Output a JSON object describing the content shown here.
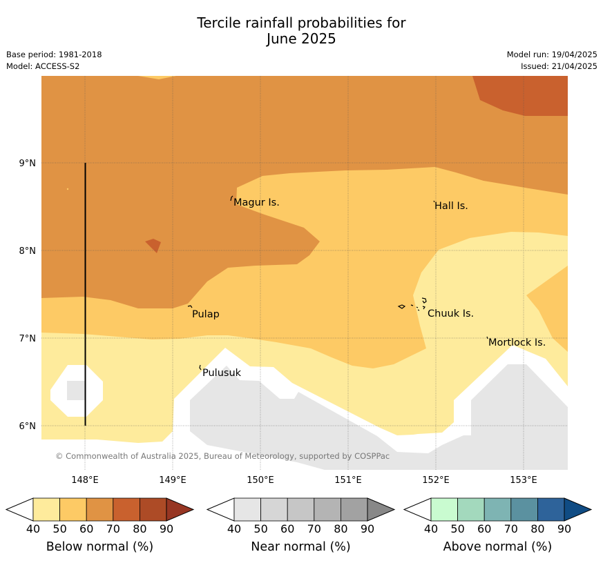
{
  "title_line1": "Tercile rainfall probabilities for",
  "title_line2": "June 2025",
  "base_period": "Base period: 1981-2018",
  "model": "Model: ACCESS-S2",
  "model_run": "Model run: 19/04/2025",
  "issued": "Issued: 21/04/2025",
  "copyright": "© Commonwealth of Australia 2025, Bureau of Meteorology, supported by COSPPac",
  "lat_ticks": [
    "9°N",
    "8°N",
    "7°N",
    "6°N"
  ],
  "lon_ticks": [
    "148°E",
    "149°E",
    "150°E",
    "151°E",
    "152°E",
    "153°E"
  ],
  "places": [
    {
      "name": "Magur Is."
    },
    {
      "name": "Hall Is."
    },
    {
      "name": "Pulap"
    },
    {
      "name": "Chuuk Is."
    },
    {
      "name": "Mortlock Is."
    },
    {
      "name": "Pulusuk"
    }
  ],
  "colorbars": [
    {
      "label": "Below normal (%)",
      "ticks": [
        "40",
        "50",
        "60",
        "70",
        "80",
        "90"
      ],
      "colors": [
        "#ffffff",
        "#feeb9c",
        "#fdca65",
        "#e09344",
        "#c9612e",
        "#ad4b26",
        "#973623"
      ]
    },
    {
      "label": "Near normal (%)",
      "ticks": [
        "40",
        "50",
        "60",
        "70",
        "80",
        "90"
      ],
      "colors": [
        "#ffffff",
        "#e6e6e6",
        "#d6d6d6",
        "#c6c6c6",
        "#b4b4b4",
        "#a2a2a2",
        "#888888"
      ]
    },
    {
      "label": "Above normal (%)",
      "ticks": [
        "40",
        "50",
        "60",
        "70",
        "80",
        "90"
      ],
      "colors": [
        "#ffffff",
        "#c9fbd0",
        "#a3d9bd",
        "#7eb4b3",
        "#5b91a0",
        "#2e639a",
        "#104c84"
      ]
    }
  ]
}
